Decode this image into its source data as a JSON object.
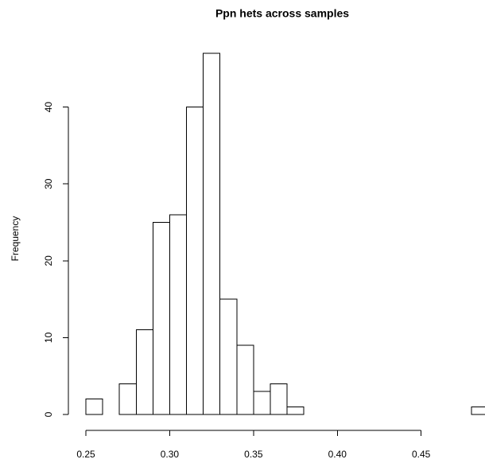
{
  "chart_data": {
    "type": "histogram",
    "title": "Ppn hets across samples",
    "y_label": "Frequency",
    "bins": [
      0.25,
      0.26,
      0.27,
      0.28,
      0.29,
      0.3,
      0.31,
      0.32,
      0.33,
      0.34,
      0.35,
      0.36,
      0.37,
      0.38,
      0.39,
      0.4,
      0.41,
      0.42,
      0.43,
      0.44,
      0.45,
      0.46,
      0.47,
      0.48,
      0.49
    ],
    "values": [
      2,
      0,
      4,
      11,
      25,
      26,
      40,
      47,
      15,
      9,
      3,
      4,
      1,
      0,
      0,
      0,
      0,
      0,
      0,
      0,
      0,
      0,
      0,
      1
    ],
    "color": "#ffffff",
    "xlim": [
      0.25,
      0.49
    ],
    "xticks": [
      0.25,
      {
        "value": 0.3,
        "label": "0.30"
      },
      0.35,
      {
        "value": 0.4,
        "label": "0.40"
      },
      0.45
    ],
    "ylim": [
      0,
      47
    ],
    "yticks": [
      0,
      10,
      20,
      30,
      40
    ]
  }
}
